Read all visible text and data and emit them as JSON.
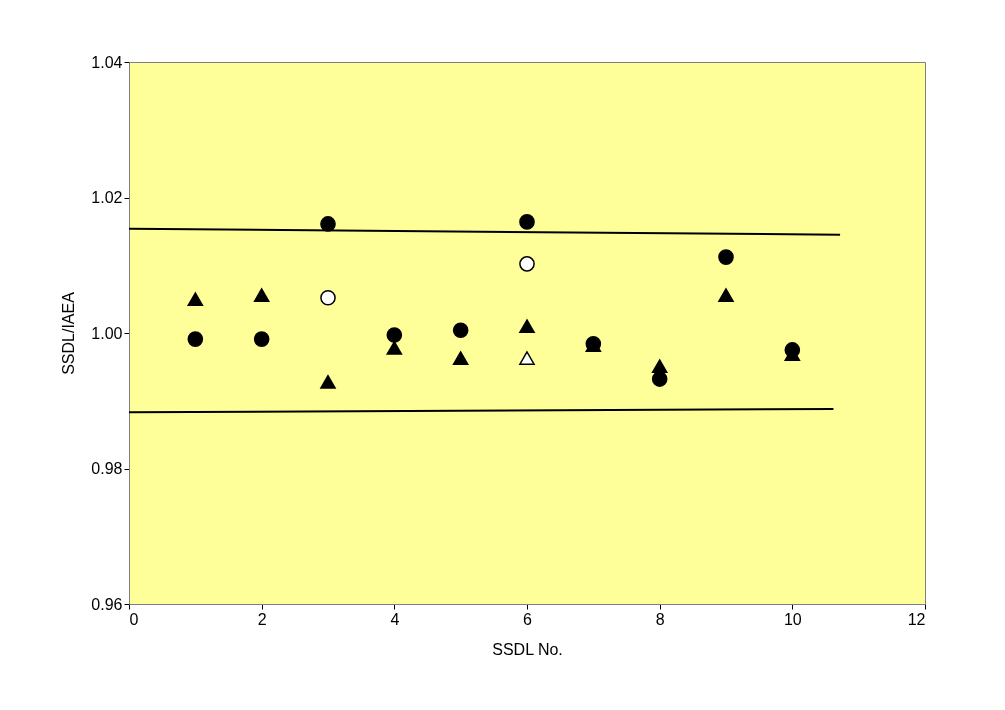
{
  "chart_data": {
    "type": "scatter",
    "xlabel": "SSDL No.",
    "ylabel": "SSDL/IAEA",
    "xlim": [
      0,
      12
    ],
    "xticks": [
      0,
      2,
      4,
      6,
      8,
      10,
      12
    ],
    "ylim": [
      0.96,
      1.04
    ],
    "yticks": [
      0.96,
      0.98,
      {
        "value": 1.0,
        "label": "1.00"
      },
      1.02,
      1.04
    ],
    "grid": false,
    "series": [
      {
        "marker": "circle",
        "color": "#000000",
        "x": [
          1,
          2,
          3,
          4,
          5,
          6,
          7,
          8,
          9,
          10
        ],
        "values": [
          0.9991,
          0.9991,
          1.0161,
          0.9997,
          1.0004,
          1.0164,
          0.9984,
          0.9932,
          1.0112,
          0.9975
        ]
      },
      {
        "marker": "triangle",
        "color": "#000000",
        "x": [
          1,
          2,
          3,
          4,
          5,
          6,
          7,
          8,
          9,
          10
        ],
        "values": [
          1.005,
          1.0056,
          0.9928,
          0.9978,
          0.9963,
          1.001,
          0.9982,
          0.9951,
          1.0056,
          0.9969
        ]
      },
      {
        "marker": "circle",
        "color": "#ffffff",
        "x": [
          3,
          6
        ],
        "values": [
          1.0052,
          1.0102
        ]
      },
      {
        "marker": "triangle",
        "color": "#ffffff",
        "x": [
          6
        ],
        "values": [
          0.9963
        ]
      },
      {
        "type": "line",
        "marker": "none",
        "color": "#000000",
        "x": [
          0,
          10.72
        ],
        "values": [
          1.0154,
          1.0145
        ]
      },
      {
        "type": "line",
        "marker": "none",
        "color": "#000000",
        "x": [
          0,
          10.62
        ],
        "values": [
          0.9883,
          0.9888
        ]
      }
    ]
  }
}
